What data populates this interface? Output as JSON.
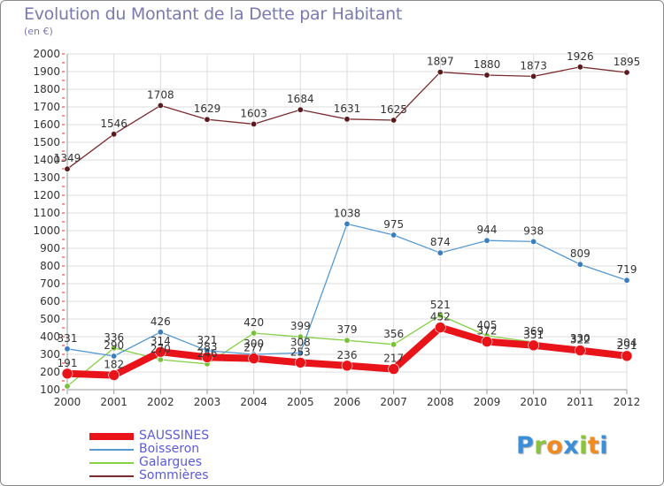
{
  "title": "Evolution du Montant de la Dette par Habitant",
  "subtitle": "(en €)",
  "logo": {
    "letters": [
      {
        "ch": "P",
        "color": "#3a8fd8"
      },
      {
        "ch": "r",
        "color": "#8ac43a"
      },
      {
        "ch": "o",
        "color": "#f28a1e"
      },
      {
        "ch": "x",
        "color": "#3a8fd8"
      },
      {
        "ch": "i",
        "color": "#8ac43a"
      },
      {
        "ch": "t",
        "color": "#f28a1e"
      },
      {
        "ch": "i",
        "color": "#3a8fd8"
      }
    ]
  },
  "chart_data": {
    "type": "line",
    "title": "Evolution du Montant de la Dette par Habitant",
    "subtitle": "(en €)",
    "x": [
      "2000",
      "2001",
      "2002",
      "2003",
      "2004",
      "2005",
      "2006",
      "2007",
      "2008",
      "2009",
      "2010",
      "2011",
      "2012"
    ],
    "ylim": [
      100,
      2000
    ],
    "yticks": [
      100,
      200,
      300,
      400,
      500,
      600,
      700,
      800,
      900,
      1000,
      1100,
      1200,
      1300,
      1400,
      1500,
      1600,
      1700,
      1800,
      1900,
      2000
    ],
    "grid": true,
    "legend_position": "bottom-left",
    "series": [
      {
        "name": "SAUSSINES",
        "color": "#e8141a",
        "values": [
          191,
          182,
          314,
          283,
          277,
          253,
          236,
          217,
          452,
          372,
          351,
          322,
          291
        ],
        "labels": [
          "191",
          "182",
          "314",
          "283",
          "277",
          "253",
          "236",
          "217",
          "452",
          "372",
          "351",
          "322",
          "291"
        ]
      },
      {
        "name": "Boisseron",
        "color": "#5599d0",
        "values": [
          331,
          290,
          426,
          321,
          300,
          308,
          1038,
          975,
          874,
          944,
          938,
          809,
          719
        ],
        "labels": [
          "331",
          "290",
          "426",
          "321",
          "300",
          "308",
          "1038",
          "975",
          "874",
          "944",
          "938",
          "809",
          "719"
        ]
      },
      {
        "name": "Galargues",
        "color": "#88d048",
        "values": [
          120,
          336,
          270,
          246,
          420,
          399,
          379,
          356,
          521,
          405,
          369,
          330,
          304
        ],
        "labels": [
          "",
          "336",
          "270",
          "246",
          "420",
          "399",
          "379",
          "356",
          "521",
          "405",
          "369",
          "330",
          "304"
        ]
      },
      {
        "name": "Sommières",
        "color": "#7a2b2e",
        "values": [
          1349,
          1546,
          1708,
          1629,
          1603,
          1684,
          1631,
          1625,
          1897,
          1880,
          1873,
          1926,
          1895
        ],
        "labels": [
          "1349",
          "1546",
          "1708",
          "1629",
          "1603",
          "1684",
          "1631",
          "1625",
          "1897",
          "1880",
          "1873",
          "1926",
          "1895"
        ]
      }
    ]
  }
}
